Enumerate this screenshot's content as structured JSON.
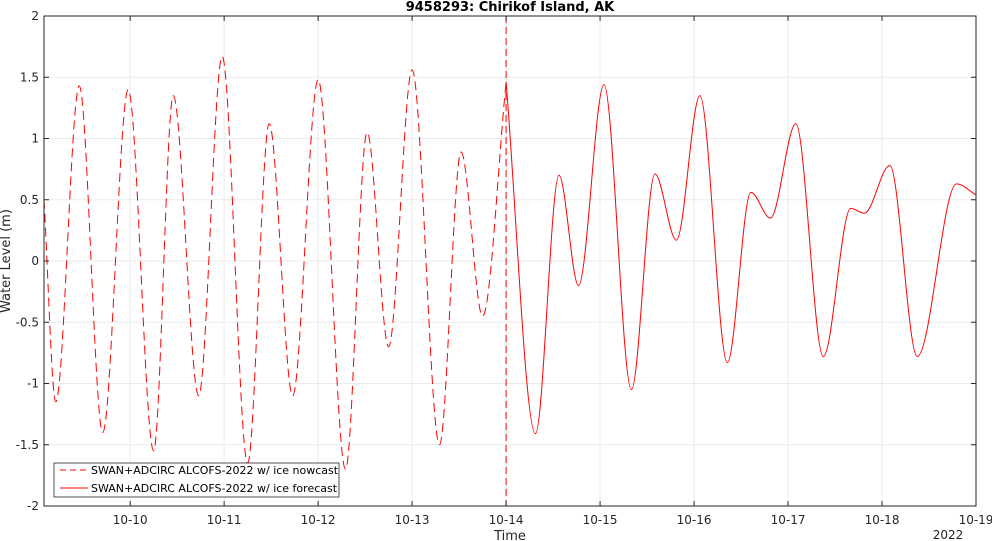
{
  "chart_data": {
    "type": "line",
    "title": "9458293: Chirikof Island, AK",
    "xlabel": "Time",
    "ylabel": "Water Level (m)",
    "year_label": "2022",
    "xlim": [
      "2022-10-09 02:00",
      "2022-10-19 00:00"
    ],
    "ylim": [
      -2,
      2
    ],
    "x_ticks": [
      "10-10",
      "10-11",
      "10-12",
      "10-13",
      "10-14",
      "10-15",
      "10-16",
      "10-17",
      "10-18",
      "10-19"
    ],
    "y_ticks": [
      {
        "value": -2,
        "label": "-2"
      },
      {
        "value": -1.5,
        "label": "-1.5"
      },
      {
        "value": -1,
        "label": "-1"
      },
      {
        "value": -0.5,
        "label": "-0.5"
      },
      {
        "value": 0,
        "label": "0"
      },
      {
        "value": 0.5,
        "label": "0.5"
      },
      {
        "value": 1,
        "label": "1"
      },
      {
        "value": 1.5,
        "label": "1.5"
      },
      {
        "value": 2,
        "label": "2"
      }
    ],
    "grid": true,
    "legend_position": "bottom-left",
    "divider_time": "2022-10-14 00:00",
    "colors": {
      "series": "#ff0000",
      "axis": "#262626",
      "grid": "#ebebeb"
    },
    "series": [
      {
        "name": "SWAN+ADCIRC ALCOFS-2022 w/ ice nowcast",
        "line_style": "dashed",
        "points": [
          [
            "2022-10-09 02:00",
            0.5
          ],
          [
            "2022-10-09 05:00",
            -1.15
          ],
          [
            "2022-10-09 11:00",
            1.43
          ],
          [
            "2022-10-09 17:00",
            -1.4
          ],
          [
            "2022-10-09 23:30",
            1.4
          ],
          [
            "2022-10-10 06:00",
            -1.55
          ],
          [
            "2022-10-10 11:00",
            1.35
          ],
          [
            "2022-10-10 17:30",
            -1.1
          ],
          [
            "2022-10-10 23:30",
            1.67
          ],
          [
            "2022-10-11 06:00",
            -1.65
          ],
          [
            "2022-10-11 11:30",
            1.12
          ],
          [
            "2022-10-11 17:30",
            -1.1
          ],
          [
            "2022-10-12 00:00",
            1.48
          ],
          [
            "2022-10-12 07:00",
            -1.7
          ],
          [
            "2022-10-12 12:30",
            1.05
          ],
          [
            "2022-10-12 18:00",
            -0.7
          ],
          [
            "2022-10-13 00:00",
            1.56
          ],
          [
            "2022-10-13 07:00",
            -1.5
          ],
          [
            "2022-10-13 12:30",
            0.89
          ],
          [
            "2022-10-13 18:00",
            -0.45
          ],
          [
            "2022-10-14 00:00",
            1.46
          ]
        ]
      },
      {
        "name": "SWAN+ADCIRC ALCOFS-2022 w/ ice forecast",
        "line_style": "solid",
        "points": [
          [
            "2022-10-14 00:00",
            1.46
          ],
          [
            "2022-10-14 07:30",
            -1.41
          ],
          [
            "2022-10-14 13:30",
            0.7
          ],
          [
            "2022-10-14 18:30",
            -0.2
          ],
          [
            "2022-10-15 01:00",
            1.44
          ],
          [
            "2022-10-15 08:00",
            -1.05
          ],
          [
            "2022-10-15 14:00",
            0.71
          ],
          [
            "2022-10-15 19:30",
            0.17
          ],
          [
            "2022-10-16 01:30",
            1.35
          ],
          [
            "2022-10-16 08:30",
            -0.83
          ],
          [
            "2022-10-16 14:30",
            0.56
          ],
          [
            "2022-10-16 19:30",
            0.35
          ],
          [
            "2022-10-17 02:00",
            1.12
          ],
          [
            "2022-10-17 09:00",
            -0.78
          ],
          [
            "2022-10-17 16:00",
            0.43
          ],
          [
            "2022-10-17 19:30",
            0.39
          ],
          [
            "2022-10-18 02:00",
            0.78
          ],
          [
            "2022-10-18 09:00",
            -0.78
          ],
          [
            "2022-10-18 19:00",
            0.63
          ],
          [
            "2022-10-19 00:00",
            0.54
          ]
        ]
      }
    ]
  }
}
